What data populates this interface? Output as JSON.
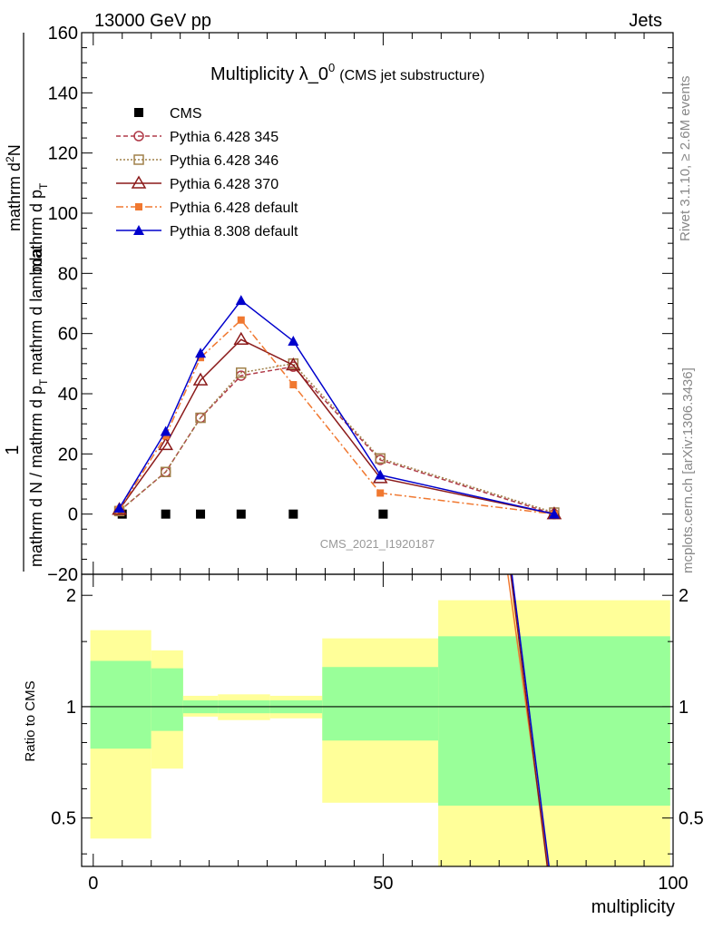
{
  "header": {
    "left": "13000 GeV pp",
    "right": "Jets"
  },
  "side": {
    "top": "Rivet 3.1.10, ≥ 2.6M events",
    "bottom": "mcplots.cern.ch [arXiv:1306.3436]"
  },
  "chart_data": {
    "type": "line",
    "title": "Multiplicity λ_0",
    "title_sup": "0",
    "title_suffix": "(CMS jet substructure)",
    "watermark": "CMS_2021_I1920187",
    "xlabel": "multiplicity",
    "ylabel_num": "1",
    "ylabel_den": "mathrm d N / mathrm d p",
    "ylabel_den_sub": "T",
    "ylabel_den_tail": "mathrm d lambda",
    "ylabel_top_num": "mathrm d",
    "ylabel_top_sup": "2",
    "ylabel_top_tail": "N",
    "ylabel_top_den": "mathrm d p",
    "ylabel_top_den_sub": "T",
    "ratio_ylabel": "Ratio to CMS",
    "xlim": [
      -2,
      100
    ],
    "ylim": [
      -20,
      160
    ],
    "ratio_ylim": [
      0.37,
      2.28
    ],
    "xticks": [
      0,
      50,
      100
    ],
    "yticks": [
      -20,
      0,
      20,
      40,
      60,
      80,
      100,
      120,
      140,
      160
    ],
    "ratio_ticks": [
      0.5,
      1,
      2
    ],
    "bins": [
      [
        0,
        10
      ],
      [
        10,
        15
      ],
      [
        15,
        20
      ],
      [
        20,
        30
      ],
      [
        30,
        40
      ],
      [
        40,
        60
      ],
      [
        60,
        100
      ]
    ],
    "series": [
      {
        "name": "CMS",
        "color": "#000000",
        "marker": "square",
        "dash": "none",
        "x": [
          5,
          12.5,
          18.5,
          25.5,
          34.5,
          50
        ],
        "y": [
          0,
          0,
          0,
          0,
          0,
          0
        ]
      },
      {
        "name": "Pythia 6.428 345",
        "color": "#b03a48",
        "marker": "circle-open",
        "dash": "5,3",
        "x": [
          4.5,
          12.5,
          18.5,
          25.5,
          34.5,
          49.5,
          79.5
        ],
        "y": [
          1,
          14,
          32,
          46,
          49,
          18,
          0
        ]
      },
      {
        "name": "Pythia 6.428 346",
        "color": "#a0804a",
        "marker": "square-open",
        "dash": "2,2",
        "x": [
          4.5,
          12.5,
          18.5,
          25.5,
          34.5,
          49.5,
          79.5
        ],
        "y": [
          1,
          14,
          32,
          47,
          50,
          18.5,
          0.5
        ]
      },
      {
        "name": "Pythia 6.428 370",
        "color": "#8b1a1a",
        "marker": "triangle-open",
        "dash": "none",
        "x": [
          4.5,
          12.5,
          18.5,
          25.5,
          34.5,
          49.5,
          79.5
        ],
        "y": [
          1.5,
          23,
          44.5,
          58,
          49.5,
          12,
          0
        ]
      },
      {
        "name": "Pythia 6.428 default",
        "color": "#f07830",
        "marker": "square-small",
        "dash": "8,3,2,3",
        "x": [
          4.5,
          12.5,
          18.5,
          25.5,
          34.5,
          49.5,
          79.5
        ],
        "y": [
          1.5,
          26,
          52,
          64.5,
          43,
          7,
          0
        ]
      },
      {
        "name": "Pythia 8.308 default",
        "color": "#0000cc",
        "marker": "triangle",
        "dash": "none",
        "x": [
          4.5,
          12.5,
          18.5,
          25.5,
          34.5,
          49.5,
          79.5
        ],
        "y": [
          2,
          27.5,
          53.5,
          71,
          57.5,
          13,
          0
        ]
      }
    ],
    "ratio_bands": [
      {
        "x0": -0.5,
        "x1": 10,
        "y_lo": 0.44,
        "y_hi": 1.61,
        "g_lo": 0.77,
        "g_hi": 1.33
      },
      {
        "x0": 10,
        "x1": 15.5,
        "y_lo": 0.68,
        "y_hi": 1.42,
        "g_lo": 0.86,
        "g_hi": 1.27
      },
      {
        "x0": 15.5,
        "x1": 21.5,
        "y_lo": 0.94,
        "y_hi": 1.07,
        "g_lo": 0.96,
        "g_hi": 1.04
      },
      {
        "x0": 21.5,
        "x1": 30.5,
        "y_lo": 0.92,
        "y_hi": 1.08,
        "g_lo": 0.96,
        "g_hi": 1.04
      },
      {
        "x0": 30.5,
        "x1": 39.5,
        "y_lo": 0.93,
        "y_hi": 1.07,
        "g_lo": 0.96,
        "g_hi": 1.04
      },
      {
        "x0": 39.5,
        "x1": 59.5,
        "y_lo": 0.55,
        "y_hi": 1.53,
        "g_lo": 0.81,
        "g_hi": 1.28
      },
      {
        "x0": 59.5,
        "x1": 99.5,
        "y_lo": 0.37,
        "y_hi": 1.94,
        "g_lo": 0.54,
        "g_hi": 1.55
      }
    ],
    "ratio_lines": [
      {
        "color": "#f07830",
        "x": [
          71.5,
          78.5
        ],
        "y": [
          2.28,
          0.37
        ]
      },
      {
        "color": "#8b1a1a",
        "x": [
          72,
          78.3
        ],
        "y": [
          2.28,
          0.37
        ]
      },
      {
        "color": "#0000cc",
        "x": [
          72.2,
          78.6
        ],
        "y": [
          2.28,
          0.37
        ]
      }
    ]
  }
}
